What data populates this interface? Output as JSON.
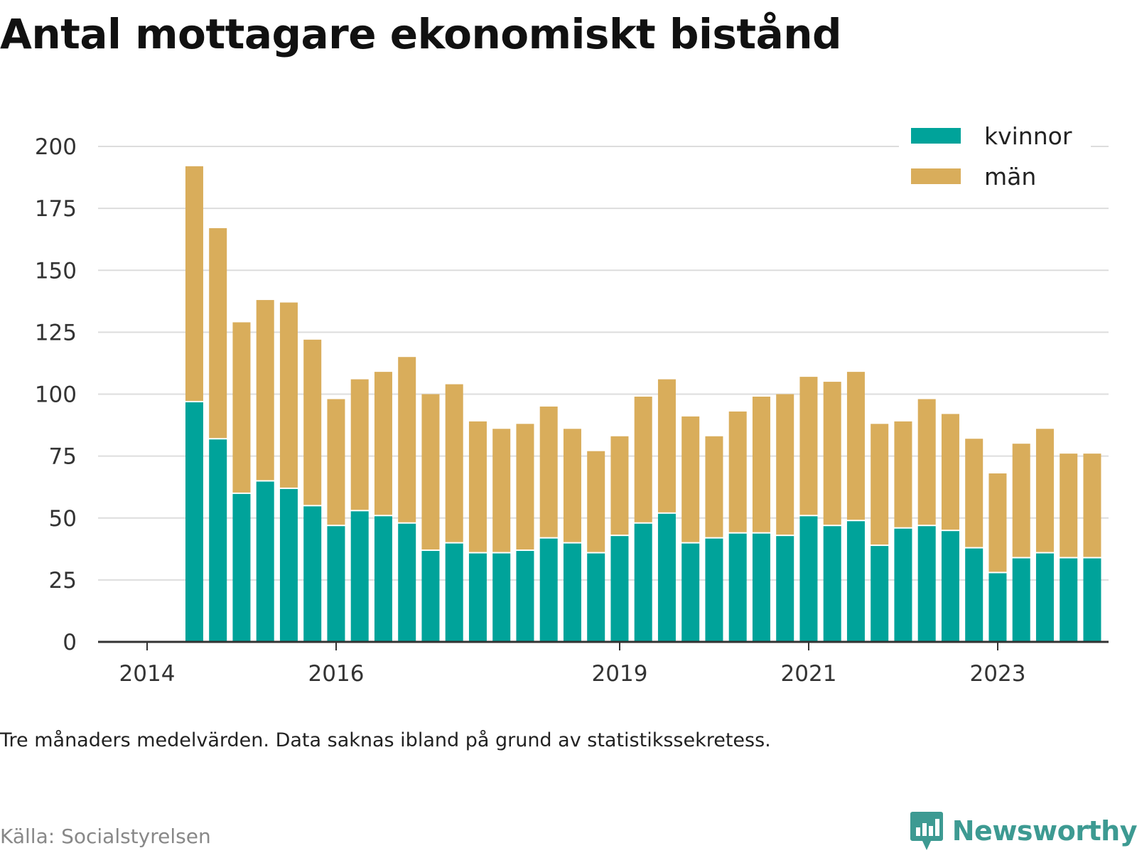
{
  "title": "Antal mottagare ekonomiskt bistånd",
  "note": "Tre månaders medelvärden. Data saknas ibland på grund av statistikssekretess.",
  "source": "Källa: Socialstyrelsen",
  "brand": {
    "name": "Newsworthy",
    "icon": "newsworthy-logo-icon"
  },
  "colors": {
    "kvinnor": "#00a39a",
    "man": "#d9ad5b",
    "grid": "#dddddd",
    "axis": "#333333"
  },
  "chart_data": {
    "type": "bar",
    "stacked": true,
    "ylim": [
      0,
      200
    ],
    "yticks": [
      "0",
      "25",
      "50",
      "75",
      "100",
      "125",
      "150",
      "175",
      "200"
    ],
    "xticks": [
      {
        "label": "2014",
        "date": "2014-01"
      },
      {
        "label": "2016",
        "date": "2016-01"
      },
      {
        "label": "2019",
        "date": "2019-01"
      },
      {
        "label": "2021",
        "date": "2021-01"
      },
      {
        "label": "2023",
        "date": "2023-01"
      }
    ],
    "grid": true,
    "legend_position": "top-right",
    "categories": [
      "2014-04",
      "2014-07",
      "2014-10",
      "2015-01",
      "2015-04",
      "2015-07",
      "2015-10",
      "2016-01",
      "2016-04",
      "2016-07",
      "2016-10",
      "2017-01",
      "2017-04",
      "2017-07",
      "2017-10",
      "2018-01",
      "2018-04",
      "2018-07",
      "2018-10",
      "2019-01",
      "2019-04",
      "2019-07",
      "2019-10",
      "2020-01",
      "2020-04",
      "2020-07",
      "2020-10",
      "2021-01",
      "2021-04",
      "2021-07",
      "2021-10",
      "2022-01",
      "2022-04",
      "2022-07",
      "2022-10",
      "2023-01",
      "2023-04",
      "2023-07",
      "2023-10"
    ],
    "series": [
      {
        "name": "kvinnor",
        "values": [
          97,
          82,
          60,
          65,
          62,
          55,
          47,
          53,
          51,
          48,
          37,
          40,
          36,
          36,
          37,
          42,
          40,
          36,
          43,
          48,
          52,
          40,
          42,
          44,
          44,
          43,
          51,
          47,
          49,
          39,
          46,
          47,
          45,
          38,
          28,
          34,
          36,
          34,
          34
        ]
      },
      {
        "name": "män",
        "values": [
          95,
          85,
          69,
          73,
          75,
          67,
          51,
          53,
          58,
          67,
          63,
          64,
          53,
          50,
          51,
          53,
          46,
          41,
          40,
          51,
          54,
          51,
          41,
          49,
          55,
          57,
          56,
          58,
          60,
          49,
          43,
          51,
          47,
          44,
          40,
          46,
          50,
          42,
          42
        ]
      }
    ]
  }
}
